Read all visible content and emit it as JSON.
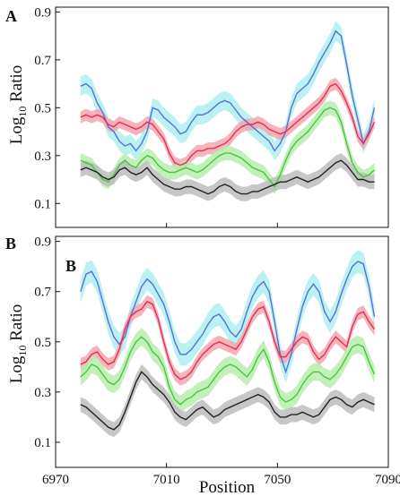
{
  "figure": {
    "panel_labels": [
      "A",
      "B"
    ],
    "inner_label_b": "B"
  },
  "colors": {
    "blue_line": "#5a6fd6",
    "blue_band": "#aeeef0",
    "red_line": "#e0305a",
    "red_band": "#f4a6ae",
    "green_line": "#46c83c",
    "green_band": "#b8ecae",
    "black_line": "#222222",
    "gray_band": "#bdbdbd"
  },
  "chart_data": [
    {
      "type": "line",
      "panel": "A",
      "title": "",
      "xlabel": "",
      "ylabel": "Log10 Ratio",
      "ylabel_main": "Log",
      "ylabel_sub": "10",
      "ylabel_rest": " Ratio",
      "xlim": [
        6970,
        7090
      ],
      "ylim": [
        0.0,
        0.92
      ],
      "yticks": [
        0.1,
        0.3,
        0.5,
        0.7,
        0.9
      ],
      "ytick_labels": [
        "0.1",
        "0.3",
        "0.5",
        "0.7",
        "0.9"
      ],
      "xticks": [
        6970,
        7010,
        7050,
        7090
      ],
      "show_xtick_labels": false,
      "series": [
        {
          "color_key": "blue",
          "band": 0.04,
          "x": [
            6979,
            6981,
            6983,
            6985,
            6987,
            6989,
            6991,
            6993,
            6995,
            6997,
            6999,
            7001,
            7003,
            7005,
            7007,
            7009,
            7011,
            7013,
            7015,
            7017,
            7019,
            7021,
            7023,
            7025,
            7027,
            7029,
            7031,
            7033,
            7035,
            7037,
            7039,
            7041,
            7043,
            7045,
            7047,
            7049,
            7051,
            7053,
            7055,
            7057,
            7059,
            7061,
            7063,
            7065,
            7067,
            7069,
            7071,
            7073,
            7075,
            7077,
            7079,
            7081,
            7083,
            7085
          ],
          "y": [
            0.59,
            0.6,
            0.58,
            0.52,
            0.48,
            0.42,
            0.4,
            0.36,
            0.34,
            0.35,
            0.32,
            0.35,
            0.4,
            0.5,
            0.49,
            0.46,
            0.44,
            0.42,
            0.39,
            0.4,
            0.44,
            0.47,
            0.47,
            0.48,
            0.5,
            0.52,
            0.53,
            0.52,
            0.49,
            0.46,
            0.44,
            0.42,
            0.4,
            0.38,
            0.36,
            0.32,
            0.35,
            0.4,
            0.5,
            0.56,
            0.58,
            0.6,
            0.64,
            0.69,
            0.73,
            0.77,
            0.82,
            0.8,
            0.68,
            0.55,
            0.45,
            0.35,
            0.4,
            0.5
          ]
        },
        {
          "color_key": "red",
          "band": 0.025,
          "x": [
            6979,
            6981,
            6983,
            6985,
            6987,
            6989,
            6991,
            6993,
            6995,
            6997,
            6999,
            7001,
            7003,
            7005,
            7007,
            7009,
            7011,
            7013,
            7015,
            7017,
            7019,
            7021,
            7023,
            7025,
            7027,
            7029,
            7031,
            7033,
            7035,
            7037,
            7039,
            7041,
            7043,
            7045,
            7047,
            7049,
            7051,
            7053,
            7055,
            7057,
            7059,
            7061,
            7063,
            7065,
            7067,
            7069,
            7071,
            7073,
            7075,
            7077,
            7079,
            7081,
            7083,
            7085
          ],
          "y": [
            0.46,
            0.47,
            0.46,
            0.47,
            0.46,
            0.43,
            0.42,
            0.44,
            0.43,
            0.42,
            0.41,
            0.42,
            0.44,
            0.43,
            0.4,
            0.37,
            0.31,
            0.27,
            0.26,
            0.27,
            0.3,
            0.32,
            0.32,
            0.33,
            0.33,
            0.34,
            0.35,
            0.37,
            0.4,
            0.42,
            0.43,
            0.43,
            0.44,
            0.43,
            0.41,
            0.4,
            0.39,
            0.4,
            0.42,
            0.44,
            0.46,
            0.48,
            0.5,
            0.52,
            0.55,
            0.59,
            0.6,
            0.57,
            0.52,
            0.46,
            0.38,
            0.35,
            0.39,
            0.44
          ]
        },
        {
          "color_key": "green",
          "band": 0.03,
          "x": [
            6979,
            6981,
            6983,
            6985,
            6987,
            6989,
            6991,
            6993,
            6995,
            6997,
            6999,
            7001,
            7003,
            7005,
            7007,
            7009,
            7011,
            7013,
            7015,
            7017,
            7019,
            7021,
            7023,
            7025,
            7027,
            7029,
            7031,
            7033,
            7035,
            7037,
            7039,
            7041,
            7043,
            7045,
            7047,
            7049,
            7051,
            7053,
            7055,
            7057,
            7059,
            7061,
            7063,
            7065,
            7067,
            7069,
            7071,
            7073,
            7075,
            7077,
            7079,
            7081,
            7083,
            7085
          ],
          "y": [
            0.28,
            0.27,
            0.26,
            0.23,
            0.2,
            0.19,
            0.22,
            0.26,
            0.28,
            0.26,
            0.25,
            0.28,
            0.3,
            0.29,
            0.26,
            0.24,
            0.23,
            0.23,
            0.24,
            0.25,
            0.24,
            0.23,
            0.24,
            0.26,
            0.28,
            0.3,
            0.31,
            0.31,
            0.3,
            0.29,
            0.27,
            0.25,
            0.24,
            0.23,
            0.2,
            0.17,
            0.22,
            0.28,
            0.33,
            0.36,
            0.38,
            0.4,
            0.43,
            0.46,
            0.49,
            0.5,
            0.49,
            0.44,
            0.35,
            0.27,
            0.23,
            0.21,
            0.22,
            0.24
          ]
        },
        {
          "color_key": "black",
          "band": 0.03,
          "x": [
            6979,
            6981,
            6983,
            6985,
            6987,
            6989,
            6991,
            6993,
            6995,
            6997,
            6999,
            7001,
            7003,
            7005,
            7007,
            7009,
            7011,
            7013,
            7015,
            7017,
            7019,
            7021,
            7023,
            7025,
            7027,
            7029,
            7031,
            7033,
            7035,
            7037,
            7039,
            7041,
            7043,
            7045,
            7047,
            7049,
            7051,
            7053,
            7055,
            7057,
            7059,
            7061,
            7063,
            7065,
            7067,
            7069,
            7071,
            7073,
            7075,
            7077,
            7079,
            7081,
            7083,
            7085
          ],
          "y": [
            0.24,
            0.25,
            0.24,
            0.23,
            0.21,
            0.2,
            0.21,
            0.24,
            0.25,
            0.23,
            0.22,
            0.23,
            0.25,
            0.22,
            0.2,
            0.18,
            0.17,
            0.16,
            0.16,
            0.17,
            0.17,
            0.16,
            0.15,
            0.14,
            0.15,
            0.17,
            0.18,
            0.17,
            0.15,
            0.14,
            0.14,
            0.15,
            0.15,
            0.16,
            0.17,
            0.18,
            0.19,
            0.19,
            0.2,
            0.21,
            0.2,
            0.19,
            0.2,
            0.21,
            0.23,
            0.25,
            0.27,
            0.28,
            0.26,
            0.23,
            0.2,
            0.2,
            0.19,
            0.19
          ]
        }
      ]
    },
    {
      "type": "line",
      "panel": "B",
      "title": "",
      "xlabel": "Position",
      "ylabel": "Log10 Ratio",
      "ylabel_main": "Log",
      "ylabel_sub": "10",
      "ylabel_rest": " Ratio",
      "xlim": [
        6970,
        7090
      ],
      "ylim": [
        0.0,
        0.92
      ],
      "yticks": [
        0.1,
        0.3,
        0.5,
        0.7,
        0.9
      ],
      "ytick_labels": [
        "0.1",
        "0.3",
        "0.5",
        "0.7",
        "0.9"
      ],
      "xticks": [
        6970,
        7010,
        7050,
        7090
      ],
      "xtick_labels": [
        "6970",
        "7010",
        "7050",
        "7090"
      ],
      "show_xtick_labels": true,
      "series": [
        {
          "color_key": "blue",
          "band": 0.045,
          "x": [
            6979,
            6981,
            6983,
            6985,
            6987,
            6989,
            6991,
            6993,
            6995,
            6997,
            6999,
            7001,
            7003,
            7005,
            7007,
            7009,
            7011,
            7013,
            7015,
            7017,
            7019,
            7021,
            7023,
            7025,
            7027,
            7029,
            7031,
            7033,
            7035,
            7037,
            7039,
            7041,
            7043,
            7045,
            7047,
            7049,
            7051,
            7053,
            7055,
            7057,
            7059,
            7061,
            7063,
            7065,
            7067,
            7069,
            7071,
            7073,
            7075,
            7077,
            7079,
            7081,
            7083,
            7085
          ],
          "y": [
            0.7,
            0.77,
            0.78,
            0.74,
            0.66,
            0.58,
            0.52,
            0.49,
            0.52,
            0.6,
            0.66,
            0.72,
            0.75,
            0.73,
            0.69,
            0.65,
            0.58,
            0.5,
            0.45,
            0.45,
            0.47,
            0.5,
            0.53,
            0.57,
            0.6,
            0.61,
            0.58,
            0.54,
            0.52,
            0.55,
            0.62,
            0.68,
            0.72,
            0.74,
            0.7,
            0.58,
            0.45,
            0.38,
            0.45,
            0.55,
            0.64,
            0.7,
            0.73,
            0.7,
            0.62,
            0.58,
            0.62,
            0.69,
            0.75,
            0.8,
            0.82,
            0.81,
            0.72,
            0.6
          ]
        },
        {
          "color_key": "red",
          "band": 0.025,
          "x": [
            6979,
            6981,
            6983,
            6985,
            6987,
            6989,
            6991,
            6993,
            6995,
            6997,
            6999,
            7001,
            7003,
            7005,
            7007,
            7009,
            7011,
            7013,
            7015,
            7017,
            7019,
            7021,
            7023,
            7025,
            7027,
            7029,
            7031,
            7033,
            7035,
            7037,
            7039,
            7041,
            7043,
            7045,
            7047,
            7049,
            7051,
            7053,
            7055,
            7057,
            7059,
            7061,
            7063,
            7065,
            7067,
            7069,
            7071,
            7073,
            7075,
            7077,
            7079,
            7081,
            7083,
            7085
          ],
          "y": [
            0.41,
            0.42,
            0.45,
            0.46,
            0.43,
            0.41,
            0.42,
            0.47,
            0.55,
            0.6,
            0.62,
            0.63,
            0.66,
            0.65,
            0.59,
            0.5,
            0.42,
            0.37,
            0.35,
            0.36,
            0.38,
            0.42,
            0.45,
            0.47,
            0.49,
            0.5,
            0.49,
            0.48,
            0.47,
            0.5,
            0.55,
            0.6,
            0.63,
            0.64,
            0.58,
            0.5,
            0.44,
            0.44,
            0.47,
            0.5,
            0.52,
            0.51,
            0.46,
            0.43,
            0.45,
            0.49,
            0.52,
            0.5,
            0.48,
            0.56,
            0.61,
            0.62,
            0.58,
            0.55
          ]
        },
        {
          "color_key": "green",
          "band": 0.035,
          "x": [
            6979,
            6981,
            6983,
            6985,
            6987,
            6989,
            6991,
            6993,
            6995,
            6997,
            6999,
            7001,
            7003,
            7005,
            7007,
            7009,
            7011,
            7013,
            7015,
            7017,
            7019,
            7021,
            7023,
            7025,
            7027,
            7029,
            7031,
            7033,
            7035,
            7037,
            7039,
            7041,
            7043,
            7045,
            7047,
            7049,
            7051,
            7053,
            7055,
            7057,
            7059,
            7061,
            7063,
            7065,
            7067,
            7069,
            7071,
            7073,
            7075,
            7077,
            7079,
            7081,
            7083,
            7085
          ],
          "y": [
            0.36,
            0.38,
            0.41,
            0.4,
            0.37,
            0.34,
            0.33,
            0.35,
            0.4,
            0.46,
            0.5,
            0.52,
            0.5,
            0.46,
            0.44,
            0.4,
            0.32,
            0.27,
            0.25,
            0.27,
            0.28,
            0.3,
            0.31,
            0.32,
            0.35,
            0.38,
            0.4,
            0.41,
            0.4,
            0.38,
            0.36,
            0.39,
            0.44,
            0.47,
            0.42,
            0.34,
            0.28,
            0.26,
            0.27,
            0.29,
            0.33,
            0.36,
            0.38,
            0.38,
            0.36,
            0.35,
            0.37,
            0.4,
            0.44,
            0.48,
            0.49,
            0.48,
            0.42,
            0.37
          ]
        },
        {
          "color_key": "black",
          "band": 0.03,
          "x": [
            6979,
            6981,
            6983,
            6985,
            6987,
            6989,
            6991,
            6993,
            6995,
            6997,
            6999,
            7001,
            7003,
            7005,
            7007,
            7009,
            7011,
            7013,
            7015,
            7017,
            7019,
            7021,
            7023,
            7025,
            7027,
            7029,
            7031,
            7033,
            7035,
            7037,
            7039,
            7041,
            7043,
            7045,
            7047,
            7049,
            7051,
            7053,
            7055,
            7057,
            7059,
            7061,
            7063,
            7065,
            7067,
            7069,
            7071,
            7073,
            7075,
            7077,
            7079,
            7081,
            7083,
            7085
          ],
          "y": [
            0.25,
            0.24,
            0.22,
            0.2,
            0.18,
            0.16,
            0.15,
            0.17,
            0.22,
            0.28,
            0.34,
            0.38,
            0.36,
            0.33,
            0.31,
            0.29,
            0.26,
            0.22,
            0.2,
            0.19,
            0.21,
            0.23,
            0.24,
            0.22,
            0.2,
            0.21,
            0.23,
            0.24,
            0.25,
            0.26,
            0.27,
            0.28,
            0.29,
            0.28,
            0.26,
            0.22,
            0.2,
            0.2,
            0.21,
            0.21,
            0.22,
            0.21,
            0.2,
            0.21,
            0.24,
            0.27,
            0.28,
            0.27,
            0.25,
            0.24,
            0.26,
            0.27,
            0.26,
            0.25
          ]
        }
      ]
    }
  ]
}
